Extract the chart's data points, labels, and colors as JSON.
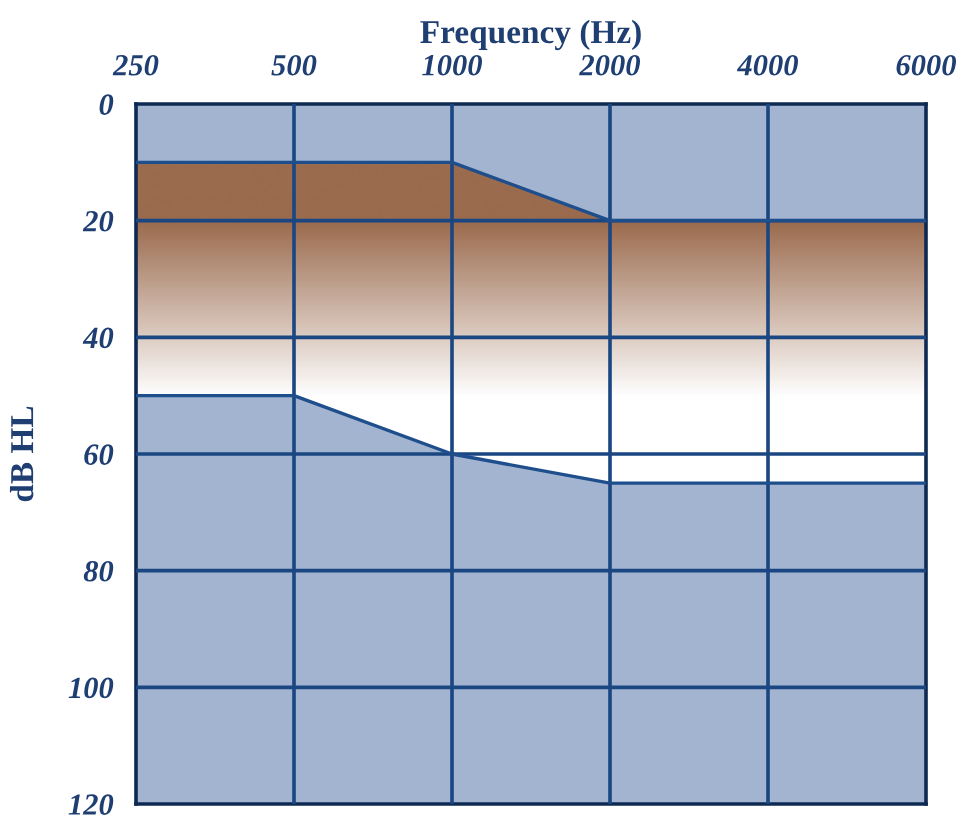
{
  "chart_data": {
    "type": "line",
    "xlabel": "Frequency (Hz)",
    "ylabel": "dB HL",
    "categories": [
      "250",
      "500",
      "1000",
      "2000",
      "4000",
      "6000"
    ],
    "series": [
      {
        "color": "#1f4e8c",
        "values": [
          10,
          10,
          10,
          20,
          20,
          20
        ]
      },
      {
        "color": "#1f4e8c",
        "values": [
          50,
          50,
          60,
          65,
          65,
          65
        ]
      }
    ],
    "marker": "none",
    "line_style": "solid",
    "ylim": [
      120,
      0
    ],
    "yticks": [
      0,
      20,
      40,
      60,
      80,
      100,
      120
    ],
    "grid": true
  }
}
